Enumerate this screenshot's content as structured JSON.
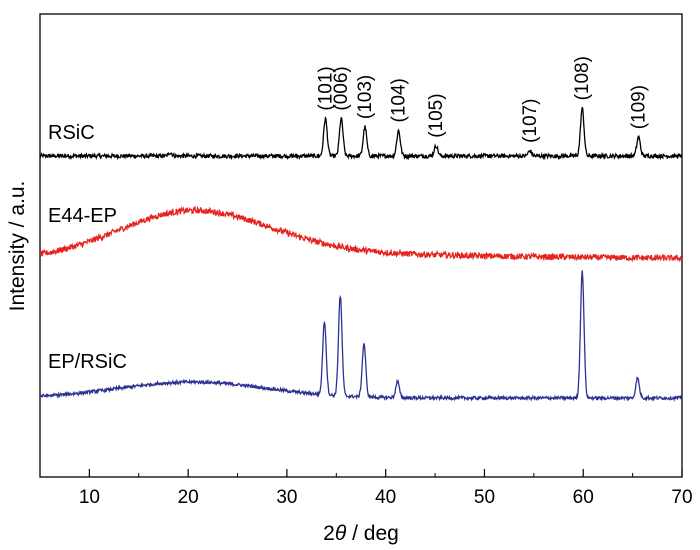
{
  "chart_data": {
    "type": "line",
    "xlabel_prefix": "2",
    "xlabel_theta": "θ",
    "xlabel_suffix": " / deg",
    "ylabel": "Intensity / a.u.",
    "xlim": [
      5,
      70
    ],
    "x_ticks": [
      10,
      20,
      30,
      40,
      50,
      60,
      70
    ],
    "y_ticks_shown": false,
    "grid": false,
    "series": [
      {
        "name": "RSiC",
        "color": "#000000",
        "baseline": 0.0,
        "hump": {
          "center": 20,
          "width": 6,
          "height": 0.0
        },
        "noise": 0.012,
        "peaks": [
          {
            "x": 18.2,
            "height": 0.02,
            "label": ""
          },
          {
            "x": 33.9,
            "height": 0.22,
            "label": "(101)"
          },
          {
            "x": 35.5,
            "height": 0.22,
            "label": "(006)"
          },
          {
            "x": 37.9,
            "height": 0.17,
            "label": "(103)"
          },
          {
            "x": 41.3,
            "height": 0.15,
            "label": "(104)"
          },
          {
            "x": 45.1,
            "height": 0.06,
            "label": "(105)"
          },
          {
            "x": 54.6,
            "height": 0.03,
            "label": "(107)"
          },
          {
            "x": 59.9,
            "height": 0.28,
            "label": "(108)"
          },
          {
            "x": 65.6,
            "height": 0.11,
            "label": "(109)"
          }
        ]
      },
      {
        "name": "E44-EP",
        "color": "#e5241f",
        "baseline": 0.0,
        "hump": {
          "center": 20.5,
          "width": 7.5,
          "height": 0.3
        },
        "tail": 0.08,
        "noise": 0.018,
        "peaks": []
      },
      {
        "name": "EP/RSiC",
        "color": "#2e3192",
        "baseline": 0.0,
        "hump": {
          "center": 20.5,
          "width": 7.5,
          "height": 0.12
        },
        "noise": 0.012,
        "peaks": [
          {
            "x": 33.8,
            "height": 0.55,
            "label": ""
          },
          {
            "x": 35.4,
            "height": 0.75,
            "label": ""
          },
          {
            "x": 37.8,
            "height": 0.4,
            "label": ""
          },
          {
            "x": 41.2,
            "height": 0.12,
            "label": ""
          },
          {
            "x": 59.9,
            "height": 0.95,
            "label": ""
          },
          {
            "x": 65.5,
            "height": 0.15,
            "label": ""
          }
        ]
      }
    ]
  }
}
